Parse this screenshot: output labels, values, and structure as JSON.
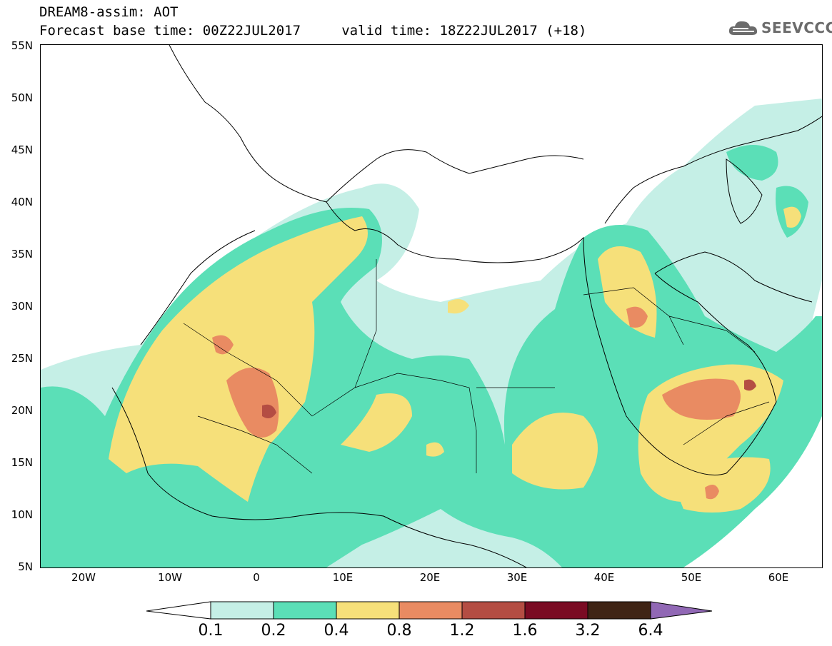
{
  "header": {
    "title": "DREAM8-assim: AOT",
    "subtitle": "Forecast base time: 00Z22JUL2017     valid time: 18Z22JUL2017 (+18)"
  },
  "logo": {
    "text": "SEEVCCC",
    "icon": "cloud-icon"
  },
  "axes": {
    "lat_labels": [
      "55N",
      "50N",
      "45N",
      "40N",
      "35N",
      "30N",
      "25N",
      "20N",
      "15N",
      "10N",
      "5N"
    ],
    "lon_labels": [
      "20W",
      "10W",
      "0",
      "10E",
      "20E",
      "30E",
      "40E",
      "50E",
      "60E"
    ]
  },
  "colorbar": {
    "labels": [
      "0.1",
      "0.2",
      "0.4",
      "0.8",
      "1.2",
      "1.6",
      "3.2",
      "6.4"
    ],
    "colors": [
      "#ffffff",
      "#c5efe6",
      "#5bdfb7",
      "#f6e07a",
      "#e98b62",
      "#b44d43",
      "#7a0b23",
      "#3f2415",
      "#9168b5"
    ]
  },
  "map_colors": {
    "c1": "#c5efe6",
    "c2": "#5bdfb7",
    "c3": "#f6e07a",
    "c4": "#e98b62",
    "c5": "#b44d43"
  }
}
